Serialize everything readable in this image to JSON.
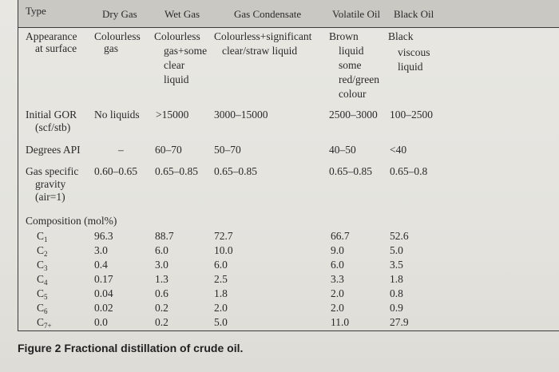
{
  "headers": [
    "Type",
    "Dry Gas",
    "Wet Gas",
    "Gas Condensate",
    "Volatile Oil",
    "Black Oil"
  ],
  "appearance": {
    "label": [
      "Appearance",
      "at surface"
    ],
    "dry": [
      "Colourless",
      "gas"
    ],
    "wet": [
      "Colourless",
      "gas+some",
      "clear",
      "liquid"
    ],
    "cond": [
      "Colourless+significant",
      "clear/straw liquid"
    ],
    "vol": [
      "Brown",
      "liquid",
      "some",
      "red/green",
      "colour"
    ],
    "black": [
      "Black",
      "viscous",
      "liquid"
    ]
  },
  "gor": {
    "label": [
      "Initial GOR",
      "(scf/stb)"
    ],
    "dry": "No liquids",
    "wet": ">15000",
    "cond": "3000–15000",
    "vol": "2500–3000",
    "black": "100–2500"
  },
  "api": {
    "label": "Degrees API",
    "dry": "–",
    "wet": "60–70",
    "cond": "50–70",
    "vol": "40–50",
    "black": "<40"
  },
  "sg": {
    "label": [
      "Gas specific",
      "gravity",
      "(air=1)"
    ],
    "dry": "0.60–0.65",
    "wet": "0.65–0.85",
    "cond": "0.65–0.85",
    "vol": "0.65–0.85",
    "black": "0.65–0.8"
  },
  "composition": {
    "label": "Composition (mol%)",
    "rows": [
      {
        "c": "C",
        "n": "1",
        "dry": "96.3",
        "wet": "88.7",
        "cond": "72.7",
        "vol": "66.7",
        "black": "52.6"
      },
      {
        "c": "C",
        "n": "2",
        "dry": "3.0",
        "wet": "6.0",
        "cond": "10.0",
        "vol": "9.0",
        "black": "5.0"
      },
      {
        "c": "C",
        "n": "3",
        "dry": "0.4",
        "wet": "3.0",
        "cond": "6.0",
        "vol": "6.0",
        "black": "3.5"
      },
      {
        "c": "C",
        "n": "4",
        "dry": "0.17",
        "wet": "1.3",
        "cond": "2.5",
        "vol": "3.3",
        "black": "1.8"
      },
      {
        "c": "C",
        "n": "5",
        "dry": "0.04",
        "wet": "0.6",
        "cond": "1.8",
        "vol": "2.0",
        "black": "0.8"
      },
      {
        "c": "C",
        "n": "6",
        "dry": "0.02",
        "wet": "0.2",
        "cond": "2.0",
        "vol": "2.0",
        "black": "0.9"
      },
      {
        "c": "C",
        "n": "7+",
        "dry": "0.0",
        "wet": "0.2",
        "cond": "5.0",
        "vol": "11.0",
        "black": "27.9"
      }
    ]
  },
  "caption": "Figure 2 Fractional distillation of crude oil."
}
